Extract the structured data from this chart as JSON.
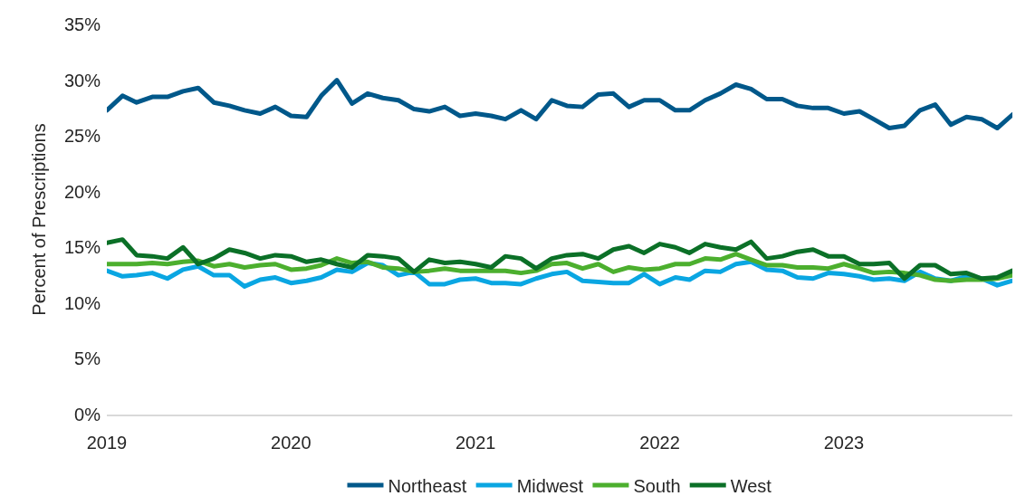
{
  "chart_data": {
    "type": "line",
    "ylabel": "Percent of Prescriptions",
    "x": [
      "2019-01",
      "2019-02",
      "2019-03",
      "2019-04",
      "2019-05",
      "2019-06",
      "2019-07",
      "2019-08",
      "2019-09",
      "2019-10",
      "2019-11",
      "2019-12",
      "2020-01",
      "2020-02",
      "2020-03",
      "2020-04",
      "2020-05",
      "2020-06",
      "2020-07",
      "2020-08",
      "2020-09",
      "2020-10",
      "2020-11",
      "2020-12",
      "2021-01",
      "2021-02",
      "2021-03",
      "2021-04",
      "2021-05",
      "2021-06",
      "2021-07",
      "2021-08",
      "2021-09",
      "2021-10",
      "2021-11",
      "2021-12",
      "2022-01",
      "2022-02",
      "2022-03",
      "2022-04",
      "2022-05",
      "2022-06",
      "2022-07",
      "2022-08",
      "2022-09",
      "2022-10",
      "2022-11",
      "2022-12",
      "2023-01",
      "2023-02",
      "2023-03",
      "2023-04",
      "2023-05",
      "2023-06",
      "2023-07",
      "2023-08",
      "2023-09",
      "2023-10",
      "2023-11",
      "2023-12"
    ],
    "series": [
      {
        "name": "Northeast",
        "color": "#00588a",
        "values": [
          27.3,
          28.6,
          28.0,
          28.5,
          28.5,
          29.0,
          29.3,
          28.0,
          27.7,
          27.3,
          27.0,
          27.6,
          26.8,
          26.7,
          28.6,
          30.0,
          27.9,
          28.8,
          28.4,
          28.2,
          27.4,
          27.2,
          27.6,
          26.8,
          27.0,
          26.8,
          26.5,
          27.3,
          26.5,
          28.2,
          27.7,
          27.6,
          28.7,
          28.8,
          27.6,
          28.2,
          28.2,
          27.3,
          27.3,
          28.2,
          28.8,
          29.6,
          29.2,
          28.3,
          28.3,
          27.7,
          27.5,
          27.5,
          27.0,
          27.2,
          26.5,
          25.7,
          25.9,
          27.3,
          27.8,
          26.0,
          26.7,
          26.5,
          25.7,
          26.9
        ]
      },
      {
        "name": "Midwest",
        "color": "#0aa6e2",
        "values": [
          12.9,
          12.4,
          12.5,
          12.7,
          12.2,
          13.0,
          13.3,
          12.5,
          12.5,
          11.5,
          12.1,
          12.3,
          11.8,
          12.0,
          12.3,
          13.0,
          12.8,
          13.6,
          13.4,
          12.5,
          12.8,
          11.7,
          11.7,
          12.1,
          12.2,
          11.8,
          11.8,
          11.7,
          12.2,
          12.6,
          12.8,
          12.0,
          11.9,
          11.8,
          11.8,
          12.6,
          11.7,
          12.3,
          12.1,
          12.9,
          12.8,
          13.5,
          13.7,
          13.0,
          12.9,
          12.3,
          12.2,
          12.7,
          12.6,
          12.4,
          12.1,
          12.2,
          12.0,
          12.8,
          12.2,
          12.0,
          12.4,
          12.2,
          11.6,
          12.0
        ]
      },
      {
        "name": "South",
        "color": "#4caf2e",
        "values": [
          13.5,
          13.5,
          13.5,
          13.6,
          13.5,
          13.7,
          13.8,
          13.3,
          13.5,
          13.2,
          13.4,
          13.5,
          13.0,
          13.1,
          13.4,
          14.0,
          13.6,
          13.7,
          13.2,
          13.1,
          12.8,
          12.9,
          13.1,
          12.9,
          12.9,
          12.9,
          12.9,
          12.7,
          12.9,
          13.5,
          13.6,
          13.1,
          13.5,
          12.8,
          13.2,
          13.0,
          13.1,
          13.5,
          13.5,
          14.0,
          13.9,
          14.4,
          13.9,
          13.4,
          13.4,
          13.2,
          13.2,
          13.1,
          13.5,
          13.1,
          12.7,
          12.8,
          12.7,
          12.5,
          12.1,
          12.0,
          12.1,
          12.1,
          12.2,
          12.5
        ]
      },
      {
        "name": "West",
        "color": "#0b7027",
        "values": [
          15.4,
          15.7,
          14.3,
          14.2,
          14.0,
          15.0,
          13.5,
          14.0,
          14.8,
          14.5,
          14.0,
          14.3,
          14.2,
          13.7,
          13.9,
          13.5,
          13.2,
          14.3,
          14.2,
          14.0,
          12.8,
          13.9,
          13.6,
          13.7,
          13.5,
          13.2,
          14.2,
          14.0,
          13.1,
          14.0,
          14.3,
          14.4,
          14.0,
          14.8,
          15.1,
          14.5,
          15.3,
          15.0,
          14.5,
          15.3,
          15.0,
          14.8,
          15.5,
          14.0,
          14.2,
          14.6,
          14.8,
          14.2,
          14.2,
          13.5,
          13.5,
          13.6,
          12.2,
          13.4,
          13.4,
          12.6,
          12.7,
          12.2,
          12.3,
          12.9
        ]
      }
    ],
    "xlim": [
      "2019-01",
      "2023-12"
    ],
    "xticks": [
      "2019",
      "2020",
      "2021",
      "2022",
      "2023"
    ],
    "ylim": [
      0,
      35
    ],
    "yticks": [
      {
        "value": 0,
        "label": "0%"
      },
      {
        "value": 5,
        "label": "5%"
      },
      {
        "value": 10,
        "label": "10%"
      },
      {
        "value": 15,
        "label": "15%"
      },
      {
        "value": 20,
        "label": "20%"
      },
      {
        "value": 25,
        "label": "25%"
      },
      {
        "value": 30,
        "label": "30%"
      },
      {
        "value": 35,
        "label": "35%"
      }
    ],
    "grid": false,
    "legend": "bottom"
  }
}
